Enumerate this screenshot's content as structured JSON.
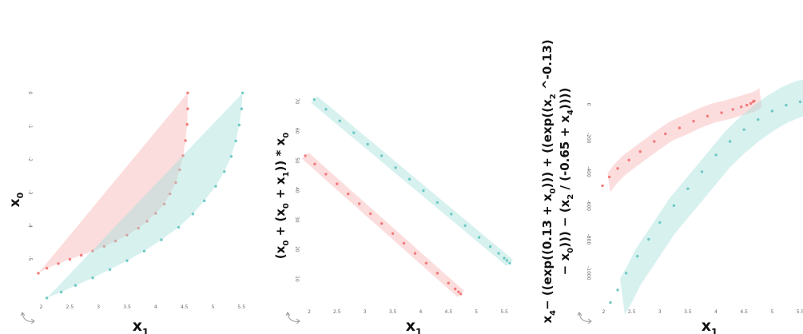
{
  "colors": {
    "red": "#f27a7a",
    "teal": "#6fc9c4",
    "red_fill": "#f8b3b3",
    "teal_fill": "#a6e0dc"
  },
  "icons": {
    "rotate": "rotate-arrow-icon"
  },
  "chart_data": [
    {
      "type": "scatter",
      "xlabel": "x1",
      "ylabel": "x0",
      "x_ticks": [
        "2",
        "2.5",
        "3",
        "3.5",
        "4",
        "4.5",
        "5",
        "5.5"
      ],
      "y_ticks": [
        "0",
        "-1",
        "-2",
        "-3",
        "-4",
        "-5"
      ],
      "xlim": [
        1.95,
        5.65
      ],
      "ylim": [
        -6.25,
        0.25
      ],
      "series": [
        {
          "color": "red",
          "points": [
            [
              1.95,
              -5.45
            ],
            [
              2.1,
              -5.3
            ],
            [
              2.3,
              -5.16
            ],
            [
              2.5,
              -5.03
            ],
            [
              2.7,
              -4.91
            ],
            [
              2.9,
              -4.78
            ],
            [
              3.1,
              -4.64
            ],
            [
              3.3,
              -4.48
            ],
            [
              3.5,
              -4.3
            ],
            [
              3.7,
              -4.09
            ],
            [
              3.85,
              -3.88
            ],
            [
              4.0,
              -3.64
            ],
            [
              4.15,
              -3.36
            ],
            [
              4.25,
              -3.05
            ],
            [
              4.35,
              -2.71
            ],
            [
              4.42,
              -2.32
            ],
            [
              4.48,
              -1.9
            ],
            [
              4.52,
              -1.44
            ],
            [
              4.55,
              -0.95
            ],
            [
              4.56,
              -0.48
            ],
            [
              4.56,
              0.0
            ]
          ]
        },
        {
          "color": "teal",
          "points": [
            [
              2.1,
              -6.2
            ],
            [
              2.35,
              -6.02
            ],
            [
              2.6,
              -5.82
            ],
            [
              2.9,
              -5.59
            ],
            [
              3.2,
              -5.34
            ],
            [
              3.5,
              -5.07
            ],
            [
              3.8,
              -4.78
            ],
            [
              4.1,
              -4.44
            ],
            [
              4.4,
              -4.06
            ],
            [
              4.65,
              -3.66
            ],
            [
              4.85,
              -3.26
            ],
            [
              5.05,
              -2.82
            ],
            [
              5.2,
              -2.38
            ],
            [
              5.32,
              -1.92
            ],
            [
              5.4,
              -1.45
            ],
            [
              5.46,
              -0.97
            ],
            [
              5.5,
              -0.48
            ],
            [
              5.52,
              0.0
            ]
          ]
        }
      ]
    },
    {
      "type": "scatter",
      "xlabel": "x1",
      "ylabel": "(x0 + (x0 + x1)) * x0",
      "x_ticks": [
        "2",
        "2.5",
        "3",
        "3.5",
        "4",
        "4.5",
        "5",
        "5.5"
      ],
      "y_ticks": [
        "70",
        "60",
        "50",
        "40",
        "30",
        "20",
        "10"
      ],
      "xlim": [
        1.9,
        5.7
      ],
      "ylim": [
        0,
        74
      ],
      "series": [
        {
          "color": "red",
          "points": [
            [
              1.93,
              51.6
            ],
            [
              2.1,
              48.8
            ],
            [
              2.3,
              45.4
            ],
            [
              2.5,
              42.1
            ],
            [
              2.7,
              38.7
            ],
            [
              2.9,
              35.4
            ],
            [
              3.1,
              32.0
            ],
            [
              3.3,
              28.7
            ],
            [
              3.5,
              25.3
            ],
            [
              3.7,
              22.0
            ],
            [
              3.9,
              18.6
            ],
            [
              4.1,
              15.3
            ],
            [
              4.3,
              11.9
            ],
            [
              4.5,
              8.6
            ],
            [
              4.62,
              6.6
            ],
            [
              4.68,
              5.6
            ],
            [
              4.72,
              4.9
            ]
          ]
        },
        {
          "color": "teal",
          "points": [
            [
              2.09,
              70.6
            ],
            [
              2.3,
              67.3
            ],
            [
              2.55,
              63.4
            ],
            [
              2.8,
              59.4
            ],
            [
              3.05,
              55.5
            ],
            [
              3.3,
              51.6
            ],
            [
              3.55,
              47.6
            ],
            [
              3.8,
              43.7
            ],
            [
              4.05,
              39.8
            ],
            [
              4.3,
              35.8
            ],
            [
              4.55,
              31.9
            ],
            [
              4.8,
              28.0
            ],
            [
              5.05,
              24.0
            ],
            [
              5.25,
              20.9
            ],
            [
              5.4,
              18.6
            ],
            [
              5.5,
              17.0
            ],
            [
              5.55,
              16.2
            ],
            [
              5.6,
              15.3
            ]
          ]
        }
      ]
    },
    {
      "type": "scatter",
      "xlabel": "x1",
      "ylabel": [
        "x4− ((exp((0.13 + x0))) + ((exp((x2 ^-0.13)",
        "− x0))) − (x2 / (-0.65 + x4))))"
      ],
      "x_ticks": [
        "2",
        "2.5",
        "3",
        "3.5",
        "4",
        "4.5",
        "5",
        "5.5"
      ],
      "y_ticks": [
        "0",
        "-200",
        "-400",
        "-600",
        "-800",
        "-1000"
      ],
      "xlim": [
        1.85,
        5.55
      ],
      "ylim": [
        -1200,
        50
      ],
      "series": [
        {
          "color": "red",
          "points": [
            [
              1.98,
              -482
            ],
            [
              2.1,
              -430
            ],
            [
              2.25,
              -380
            ],
            [
              2.45,
              -330
            ],
            [
              2.65,
              -280
            ],
            [
              2.9,
              -220
            ],
            [
              3.1,
              -175
            ],
            [
              3.35,
              -140
            ],
            [
              3.6,
              -100
            ],
            [
              3.85,
              -70
            ],
            [
              4.1,
              -50
            ],
            [
              4.3,
              -30
            ],
            [
              4.45,
              -15
            ],
            [
              4.55,
              -5
            ],
            [
              4.62,
              5
            ],
            [
              4.66,
              15
            ],
            [
              4.68,
              20
            ]
          ]
        },
        {
          "color": "teal",
          "points": [
            [
              2.12,
              -1175
            ],
            [
              2.25,
              -1100
            ],
            [
              2.4,
              -1000
            ],
            [
              2.6,
              -900
            ],
            [
              2.8,
              -800
            ],
            [
              3.0,
              -700
            ],
            [
              3.25,
              -600
            ],
            [
              3.5,
              -500
            ],
            [
              3.75,
              -400
            ],
            [
              4.0,
              -300
            ],
            [
              4.25,
              -220
            ],
            [
              4.5,
              -150
            ],
            [
              4.75,
              -90
            ],
            [
              5.0,
              -40
            ],
            [
              5.25,
              -5
            ],
            [
              5.5,
              15
            ]
          ]
        }
      ]
    }
  ]
}
